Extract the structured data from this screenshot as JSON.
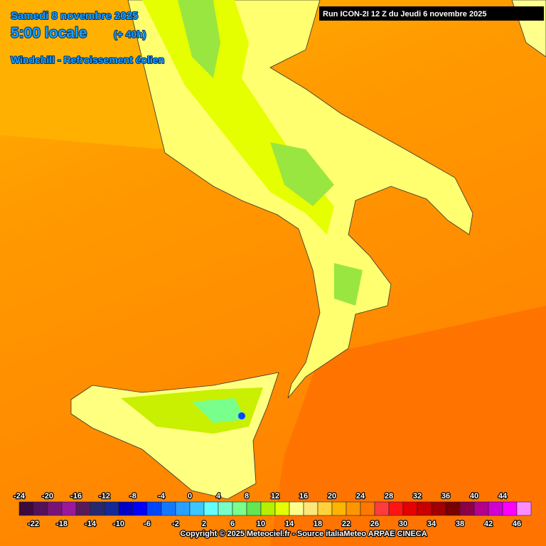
{
  "header": {
    "date": "Samedi 8 novembre 2025",
    "time": "5:00 locale",
    "lead": "(+ 40h)",
    "field": "Windchill - Refroissement éolien"
  },
  "run": "Run ICON-2I 12 Z du Jeudi 6 novembre 2025",
  "legend": {
    "items": [
      {
        "value": -24,
        "color": "#3c0a3c"
      },
      {
        "value": -22,
        "color": "#55105a"
      },
      {
        "value": -20,
        "color": "#781478"
      },
      {
        "value": -18,
        "color": "#9a189a"
      },
      {
        "value": -16,
        "color": "#5a1a5a"
      },
      {
        "value": -14,
        "color": "#28286e"
      },
      {
        "value": -12,
        "color": "#142896"
      },
      {
        "value": -10,
        "color": "#0000c8"
      },
      {
        "value": -8,
        "color": "#0000ff"
      },
      {
        "value": -6,
        "color": "#0046ff"
      },
      {
        "value": -4,
        "color": "#1478ff"
      },
      {
        "value": -2,
        "color": "#28a0ff"
      },
      {
        "value": 0,
        "color": "#3cc8ff"
      },
      {
        "value": 2,
        "color": "#64ffff"
      },
      {
        "value": 4,
        "color": "#78ffc8"
      },
      {
        "value": 6,
        "color": "#78ff8c"
      },
      {
        "value": 8,
        "color": "#64e650"
      },
      {
        "value": 10,
        "color": "#b4f000"
      },
      {
        "value": 12,
        "color": "#e6ff00"
      },
      {
        "value": 14,
        "color": "#ffff8c"
      },
      {
        "value": 16,
        "color": "#ffe678"
      },
      {
        "value": 18,
        "color": "#ffd23c"
      },
      {
        "value": 20,
        "color": "#ffb400"
      },
      {
        "value": 22,
        "color": "#ff9600"
      },
      {
        "value": 24,
        "color": "#ff7800"
      },
      {
        "value": 26,
        "color": "#ff3c3c"
      },
      {
        "value": 28,
        "color": "#ff1414"
      },
      {
        "value": 30,
        "color": "#e60000"
      },
      {
        "value": 32,
        "color": "#c80000"
      },
      {
        "value": 34,
        "color": "#a00000"
      },
      {
        "value": 36,
        "color": "#780000"
      },
      {
        "value": 38,
        "color": "#8c0046"
      },
      {
        "value": 40,
        "color": "#b4008c"
      },
      {
        "value": 42,
        "color": "#d200d2"
      },
      {
        "value": 44,
        "color": "#ff00ff"
      },
      {
        "value": 46,
        "color": "#ff8cff"
      }
    ]
  },
  "copyright": "Copyright © 2025 Meteociel.fr - Source italiaMeteo ARPAE CINECA"
}
